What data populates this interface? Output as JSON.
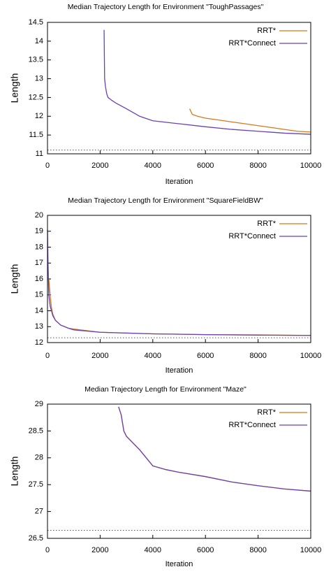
{
  "chart_data": [
    {
      "type": "line",
      "title": "Median Trajectory Length for Environment \"ToughPassages\"",
      "x_label": "Iteration",
      "y_label": "Length",
      "xlim": [
        0,
        10000
      ],
      "xticks": [
        0,
        2000,
        4000,
        6000,
        8000,
        10000
      ],
      "ylim": [
        11,
        14.5
      ],
      "yticks": [
        11,
        11.5,
        12,
        12.5,
        13,
        13.5,
        14,
        14.5
      ],
      "reference_line": 11.1,
      "legend": "top-right",
      "series": [
        {
          "name": "RRT*",
          "color": "#d8781c",
          "x": [
            5400,
            5500,
            5700,
            6000,
            6500,
            7000,
            7500,
            8000,
            8500,
            9000,
            9500,
            10000
          ],
          "values": [
            12.2,
            12.05,
            12.0,
            11.95,
            11.9,
            11.85,
            11.8,
            11.75,
            11.7,
            11.65,
            11.6,
            11.58
          ]
        },
        {
          "name": "RRT*Connect",
          "color": "#6a40b8",
          "x": [
            2150,
            2170,
            2200,
            2250,
            2300,
            2450,
            2600,
            3000,
            3500,
            4000,
            5000,
            6000,
            7000,
            8000,
            9000,
            10000
          ],
          "values": [
            14.3,
            13.0,
            12.8,
            12.6,
            12.5,
            12.42,
            12.35,
            12.2,
            12.0,
            11.88,
            11.8,
            11.72,
            11.65,
            11.6,
            11.55,
            11.52
          ]
        }
      ]
    },
    {
      "type": "line",
      "title": "Median Trajectory Length for Environment \"SquareFieldBW\"",
      "x_label": "Iteration",
      "y_label": "Length",
      "xlim": [
        0,
        10000
      ],
      "xticks": [
        0,
        2000,
        4000,
        6000,
        8000,
        10000
      ],
      "ylim": [
        12,
        20
      ],
      "yticks": [
        12,
        13,
        14,
        15,
        16,
        17,
        18,
        19,
        20
      ],
      "reference_line": 12.3,
      "legend": "top-right",
      "series": [
        {
          "name": "RRT*",
          "color": "#d8781c",
          "x": [
            50,
            100,
            150,
            200,
            300,
            500,
            800,
            1000,
            2000,
            4000,
            6000,
            8000,
            10000
          ],
          "values": [
            16,
            15,
            14.2,
            13.8,
            13.4,
            13.1,
            12.9,
            12.85,
            12.65,
            12.55,
            12.5,
            12.48,
            12.45
          ]
        },
        {
          "name": "RRT*Connect",
          "color": "#6a40b8",
          "x": [
            0,
            20,
            50,
            100,
            200,
            300,
            500,
            800,
            1000,
            2000,
            4000,
            6000,
            8000,
            10000
          ],
          "values": [
            19.1,
            17,
            15,
            14.3,
            13.7,
            13.4,
            13.1,
            12.9,
            12.8,
            12.65,
            12.55,
            12.5,
            12.47,
            12.45
          ]
        }
      ]
    },
    {
      "type": "line",
      "title": "Median Trajectory Length for Environment \"Maze\"",
      "x_label": "Iteration",
      "y_label": "Length",
      "xlim": [
        0,
        10000
      ],
      "xticks": [
        0,
        2000,
        4000,
        6000,
        8000,
        10000
      ],
      "ylim": [
        26.5,
        29
      ],
      "yticks": [
        26.5,
        27,
        27.5,
        28,
        28.5,
        29
      ],
      "reference_line": 26.65,
      "legend": "top-right",
      "series": [
        {
          "name": "RRT*",
          "color": "#d8781c",
          "x": [
            2700,
            2800,
            2900,
            3000,
            3500,
            4000,
            4500,
            5000,
            6000,
            7000,
            8000,
            9000,
            10000
          ],
          "values": [
            28.95,
            28.8,
            28.5,
            28.4,
            28.15,
            27.85,
            27.78,
            27.73,
            27.65,
            27.55,
            27.48,
            27.42,
            27.38
          ]
        },
        {
          "name": "RRT*Connect",
          "color": "#6a40b8",
          "x": [
            2700,
            2800,
            2900,
            3000,
            3500,
            4000,
            4500,
            5000,
            6000,
            7000,
            8000,
            9000,
            10000
          ],
          "values": [
            28.95,
            28.8,
            28.5,
            28.4,
            28.15,
            27.85,
            27.78,
            27.73,
            27.65,
            27.55,
            27.48,
            27.42,
            27.38
          ]
        }
      ]
    }
  ]
}
